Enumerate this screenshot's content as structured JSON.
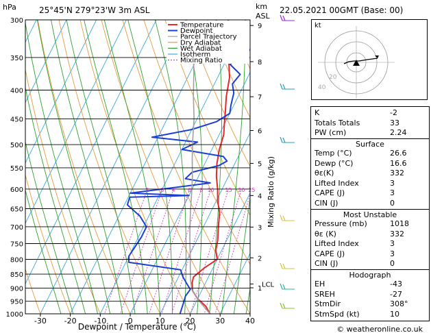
{
  "header": {
    "location": "25°45'N  279°23'W  3m  ASL",
    "datetime": "22.05.2021  00GMT  (Base: 00)",
    "hpa_label": "hPa",
    "km_label": "km",
    "asl_label": "ASL"
  },
  "chart_data": {
    "type": "line",
    "xlabel": "Dewpoint / Temperature (°C)",
    "ylabel_right": "Mixing Ratio (g/kg)",
    "xlim": [
      -35,
      40
    ],
    "ylim_hpa": [
      1000,
      300
    ],
    "x_ticks": [
      -30,
      -20,
      -10,
      0,
      10,
      20,
      30,
      40
    ],
    "pressure_levels": [
      300,
      350,
      400,
      450,
      500,
      550,
      600,
      650,
      700,
      750,
      800,
      850,
      900,
      950,
      1000
    ],
    "km_ticks": [
      {
        "label": "9",
        "p": 307
      },
      {
        "label": "8",
        "p": 356
      },
      {
        "label": "7",
        "p": 411
      },
      {
        "label": "6",
        "p": 472
      },
      {
        "label": "5",
        "p": 540
      },
      {
        "label": "4",
        "p": 616
      },
      {
        "label": "3",
        "p": 701
      },
      {
        "label": "2",
        "p": 795
      },
      {
        "label": "1",
        "p": 899
      }
    ],
    "lcl": {
      "label": "LCL",
      "p": 885
    },
    "mixing_ratio_labels": [
      "2",
      "3",
      "4",
      "6",
      "8",
      "10",
      "15",
      "20",
      "25"
    ],
    "mixing_ratio_values": [
      2,
      3,
      4,
      6,
      8,
      10,
      15,
      20,
      25
    ],
    "legend": [
      "Temperature",
      "Dewpoint",
      "Parcel Trajectory",
      "Dry Adiabat",
      "Wet Adiabat",
      "Isotherm",
      "Mixing Ratio"
    ],
    "colors": {
      "temperature": "#e8262b",
      "dewpoint": "#1a3fd6",
      "parcel": "#a0a0a0",
      "dry_adiabat": "#e79a3a",
      "wet_adiabat": "#2ca02c",
      "isotherm": "#39a8e0",
      "mixing_ratio": "#d63fbf"
    },
    "series": [
      {
        "name": "Temperature",
        "points": [
          [
            26.6,
            1000
          ],
          [
            24,
            970
          ],
          [
            20,
            940
          ],
          [
            17,
            910
          ],
          [
            15.5,
            880
          ],
          [
            15,
            860
          ],
          [
            17,
            830
          ],
          [
            20,
            800
          ],
          [
            18,
            770
          ],
          [
            17,
            740
          ],
          [
            15,
            700
          ],
          [
            13,
            660
          ],
          [
            10.5,
            630
          ],
          [
            8.5,
            600
          ],
          [
            6,
            570
          ],
          [
            4,
            540
          ],
          [
            2.5,
            510
          ],
          [
            1.5,
            480
          ],
          [
            0,
            460
          ],
          [
            -1.5,
            440
          ],
          [
            -4,
            410
          ],
          [
            -6,
            380
          ],
          [
            -9,
            355
          ],
          [
            -12,
            330
          ],
          [
            -16,
            300
          ]
        ]
      },
      {
        "name": "Dewpoint",
        "points": [
          [
            16.6,
            1000
          ],
          [
            16,
            960
          ],
          [
            15.5,
            930
          ],
          [
            16,
            905
          ],
          [
            14,
            885
          ],
          [
            11.5,
            860
          ],
          [
            9.5,
            835
          ],
          [
            -9,
            810
          ],
          [
            -10,
            790
          ],
          [
            -9.5,
            760
          ],
          [
            -9,
            730
          ],
          [
            -9,
            700
          ],
          [
            -13,
            670
          ],
          [
            -19,
            640
          ],
          [
            -19.5,
            620
          ],
          [
            0,
            616
          ],
          [
            -20,
            610
          ],
          [
            -5,
            595
          ],
          [
            5,
            585
          ],
          [
            -4,
            575
          ],
          [
            -2.8,
            560
          ],
          [
            5,
            545
          ],
          [
            7,
            535
          ],
          [
            5,
            525
          ],
          [
            -10,
            510
          ],
          [
            -6,
            495
          ],
          [
            -22,
            485
          ],
          [
            -10,
            470
          ],
          [
            -3,
            455
          ],
          [
            0,
            440
          ],
          [
            -1,
            425
          ],
          [
            -2,
            405
          ],
          [
            -4,
            390
          ],
          [
            -3,
            375
          ],
          [
            -8,
            360
          ],
          [
            -4,
            340
          ],
          [
            -1,
            320
          ],
          [
            -6,
            300
          ]
        ]
      },
      {
        "name": "Parcel Trajectory",
        "points": [
          [
            26.6,
            1000
          ],
          [
            21,
            950
          ],
          [
            16.5,
            905
          ],
          [
            14.5,
            870
          ],
          [
            12.5,
            830
          ],
          [
            10.5,
            790
          ],
          [
            8,
            745
          ],
          [
            5.5,
            700
          ],
          [
            3,
            655
          ],
          [
            0.5,
            610
          ],
          [
            -2,
            570
          ],
          [
            -5,
            530
          ],
          [
            -8,
            490
          ],
          [
            -11,
            450
          ],
          [
            -15,
            410
          ],
          [
            -19,
            370
          ],
          [
            -24,
            330
          ],
          [
            -30,
            300
          ]
        ]
      }
    ]
  },
  "hodograph": {
    "label": "kt",
    "ring_labels": [
      "20",
      "40"
    ]
  },
  "indices": [
    {
      "label": "K",
      "value": "-2"
    },
    {
      "label": "Totals Totals",
      "value": "33"
    },
    {
      "label": "PW (cm)",
      "value": "2.24"
    }
  ],
  "surface": {
    "title": "Surface",
    "rows": [
      {
        "label": "Temp (°C)",
        "value": "26.6"
      },
      {
        "label": "Dewp (°C)",
        "value": "16.6"
      },
      {
        "label": "θε(K)",
        "value": "332"
      },
      {
        "label": "Lifted Index",
        "value": "3"
      },
      {
        "label": "CAPE (J)",
        "value": "3"
      },
      {
        "label": "CIN (J)",
        "value": "0"
      }
    ]
  },
  "most_unstable": {
    "title": "Most Unstable",
    "rows": [
      {
        "label": "Pressure (mb)",
        "value": "1018"
      },
      {
        "label": "θε (K)",
        "value": "332"
      },
      {
        "label": "Lifted Index",
        "value": "3"
      },
      {
        "label": "CAPE (J)",
        "value": "3"
      },
      {
        "label": "CIN (J)",
        "value": "0"
      }
    ]
  },
  "hodograph_table": {
    "title": "Hodograph",
    "rows": [
      {
        "label": "EH",
        "value": "-43"
      },
      {
        "label": "SREH",
        "value": "-27"
      },
      {
        "label": "StmDir",
        "value": "308°"
      },
      {
        "label": "StmSpd (kt)",
        "value": "10"
      }
    ]
  },
  "footer": {
    "copyright": "© weatheronline.co.uk"
  }
}
